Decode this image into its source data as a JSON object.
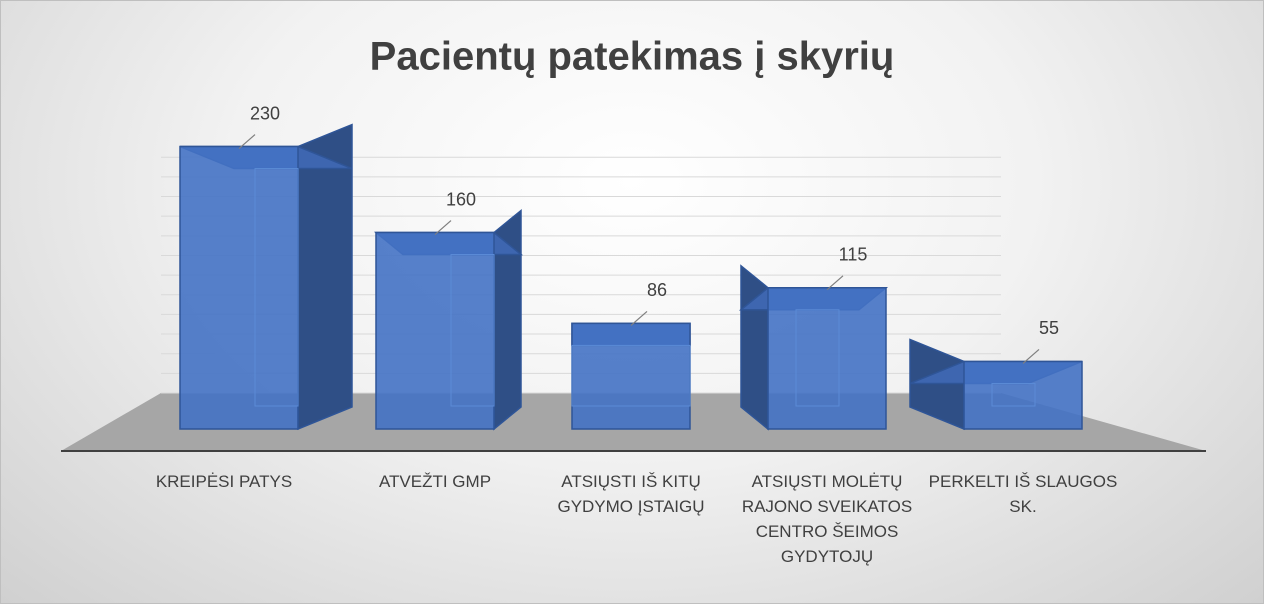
{
  "chart_data": {
    "type": "bar3d",
    "title": "Pacientų patekimas į skyrių",
    "categories": [
      "KREIPĖSI PATYS",
      "ATVEŽTI GMP",
      "ATSIŲSTI IŠ KITŲ GYDYMO ĮSTAIGŲ",
      "ATSIŲSTI MOLĖTŲ RAJONO SVEIKATOS CENTRO ŠEIMOS GYDYTOJŲ",
      "PERKELTI IŠ SLAUGOS SK."
    ],
    "values": [
      230,
      160,
      86,
      115,
      55
    ],
    "color": "#4472c4",
    "ylim": [
      0,
      250
    ],
    "yticks": [
      0,
      20,
      40,
      60,
      80,
      100,
      120,
      140,
      160,
      180,
      200,
      220,
      240
    ],
    "grid": true
  }
}
